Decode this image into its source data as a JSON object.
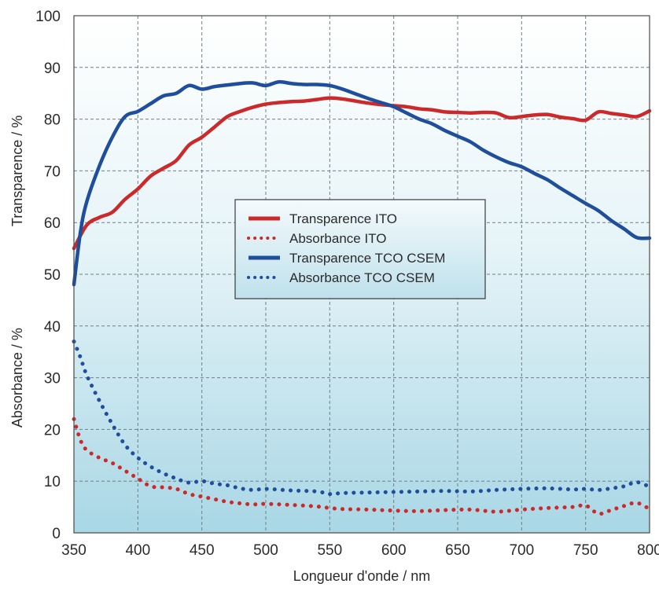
{
  "chart_data": {
    "type": "line",
    "title": "",
    "xlabel": "Longueur d'onde / nm",
    "ylabel_top": "Transparence / %",
    "ylabel_bottom": "Absorbance / %",
    "xlim": [
      350,
      800
    ],
    "ylim": [
      0,
      100
    ],
    "x_ticks": [
      350,
      400,
      450,
      500,
      550,
      600,
      650,
      700,
      750,
      800
    ],
    "y_ticks": [
      0,
      10,
      20,
      30,
      40,
      50,
      60,
      70,
      80,
      90,
      100
    ],
    "grid": true,
    "legend_position": "center",
    "colors": {
      "ito": "#cc2a2a",
      "tco": "#1f4e9c",
      "background_top": "#ffffff",
      "background_bottom": "#a9d7e5",
      "grid": "#6f7f88"
    },
    "series": [
      {
        "name": "Transparence ITO",
        "style": "solid",
        "color_key": "ito",
        "x": [
          350,
          360,
          370,
          380,
          390,
          400,
          410,
          420,
          430,
          440,
          450,
          460,
          470,
          480,
          490,
          500,
          510,
          520,
          530,
          540,
          550,
          560,
          570,
          580,
          590,
          600,
          610,
          620,
          630,
          640,
          650,
          660,
          670,
          680,
          690,
          700,
          710,
          720,
          730,
          740,
          750,
          760,
          770,
          780,
          790,
          800
        ],
        "y": [
          55,
          59.5,
          61,
          62,
          64.5,
          66.5,
          69,
          70.5,
          72,
          75,
          76.5,
          78.5,
          80.5,
          81.5,
          82.3,
          82.9,
          83.2,
          83.4,
          83.5,
          83.8,
          84.1,
          83.9,
          83.5,
          83.1,
          82.8,
          82.6,
          82.4,
          82,
          81.8,
          81.4,
          81.3,
          81.2,
          81.3,
          81.2,
          80.3,
          80.5,
          80.8,
          80.9,
          80.4,
          80.1,
          79.8,
          81.4,
          81.1,
          80.8,
          80.5,
          81.6
        ]
      },
      {
        "name": "Absorbance ITO",
        "style": "dotted",
        "color_key": "ito",
        "x": [
          350,
          355,
          360,
          370,
          380,
          390,
          400,
          410,
          420,
          430,
          440,
          450,
          460,
          470,
          480,
          490,
          500,
          520,
          540,
          550,
          560,
          580,
          600,
          620,
          640,
          660,
          680,
          700,
          720,
          740,
          750,
          760,
          770,
          780,
          790,
          800
        ],
        "y": [
          22,
          18,
          16,
          14.5,
          13.5,
          12,
          10.5,
          9,
          8.8,
          8.5,
          7.5,
          7,
          6.5,
          6,
          5.7,
          5.5,
          5.6,
          5.4,
          5.1,
          4.8,
          4.6,
          4.5,
          4.3,
          4.2,
          4.4,
          4.5,
          4.1,
          4.5,
          4.8,
          5,
          5.3,
          3.7,
          4.4,
          5.2,
          5.8,
          4.6
        ]
      },
      {
        "name": "Transparence TCO CSEM",
        "style": "solid",
        "color_key": "tco",
        "x": [
          350,
          355,
          360,
          370,
          380,
          390,
          400,
          410,
          420,
          430,
          440,
          450,
          460,
          470,
          480,
          490,
          500,
          510,
          520,
          530,
          540,
          550,
          560,
          570,
          580,
          590,
          600,
          610,
          620,
          630,
          640,
          650,
          660,
          670,
          680,
          690,
          700,
          710,
          720,
          730,
          740,
          750,
          760,
          770,
          780,
          790,
          800
        ],
        "y": [
          48,
          58,
          64,
          71,
          76.5,
          80.5,
          81.5,
          83,
          84.5,
          85,
          86.5,
          85.8,
          86.3,
          86.6,
          86.9,
          87,
          86.5,
          87.2,
          86.9,
          86.7,
          86.7,
          86.5,
          85.8,
          84.9,
          84,
          83.2,
          82.4,
          81.2,
          80,
          79.1,
          77.8,
          76.7,
          75.6,
          74,
          72.7,
          71.6,
          70.8,
          69.5,
          68.3,
          66.7,
          65.2,
          63.7,
          62.3,
          60.4,
          58.8,
          57.1,
          57
        ]
      },
      {
        "name": "Absorbance TCO CSEM",
        "style": "dotted",
        "color_key": "tco",
        "x": [
          350,
          355,
          360,
          370,
          380,
          390,
          400,
          410,
          420,
          430,
          440,
          450,
          460,
          470,
          480,
          490,
          500,
          520,
          540,
          550,
          560,
          580,
          600,
          620,
          640,
          660,
          680,
          700,
          720,
          740,
          750,
          760,
          770,
          780,
          790,
          800
        ],
        "y": [
          37,
          34,
          30.5,
          25.5,
          21,
          17,
          14.5,
          12.8,
          11.5,
          10.5,
          9.7,
          10,
          9.5,
          9.2,
          8.6,
          8.3,
          8.5,
          8.2,
          8,
          7.5,
          7.7,
          7.8,
          7.9,
          8,
          8.1,
          8,
          8.3,
          8.5,
          8.6,
          8.4,
          8.5,
          8.3,
          8.6,
          9,
          9.8,
          8.9
        ]
      }
    ]
  }
}
